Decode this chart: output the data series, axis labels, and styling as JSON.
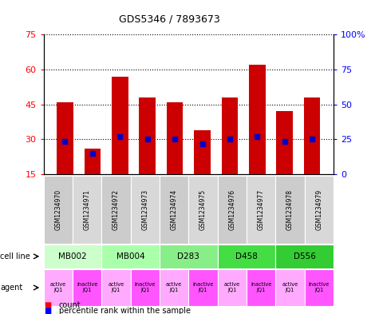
{
  "title": "GDS5346 / 7893673",
  "samples": [
    "GSM1234970",
    "GSM1234971",
    "GSM1234972",
    "GSM1234973",
    "GSM1234974",
    "GSM1234975",
    "GSM1234976",
    "GSM1234977",
    "GSM1234978",
    "GSM1234979"
  ],
  "counts": [
    46,
    26,
    57,
    48,
    46,
    34,
    48,
    62,
    42,
    48
  ],
  "percentile_y": [
    29,
    24,
    31,
    30,
    30,
    28,
    30,
    31,
    29,
    30
  ],
  "cell_lines": [
    {
      "label": "MB002",
      "cols": [
        0,
        1
      ],
      "color": "#ccffcc"
    },
    {
      "label": "MB004",
      "cols": [
        2,
        3
      ],
      "color": "#aaffaa"
    },
    {
      "label": "D283",
      "cols": [
        4,
        5
      ],
      "color": "#88ee88"
    },
    {
      "label": "D458",
      "cols": [
        6,
        7
      ],
      "color": "#44dd44"
    },
    {
      "label": "D556",
      "cols": [
        8,
        9
      ],
      "color": "#33cc33"
    }
  ],
  "agents": [
    "active\nJQ1",
    "inactive\nJQ1",
    "active\nJQ1",
    "inactive\nJQ1",
    "active\nJQ1",
    "inactive\nJQ1",
    "active\nJQ1",
    "inactive\nJQ1",
    "active\nJQ1",
    "inactive\nJQ1"
  ],
  "ylim_left": [
    15,
    75
  ],
  "ylim_right": [
    0,
    100
  ],
  "yticks_left": [
    15,
    30,
    45,
    60,
    75
  ],
  "yticks_right": [
    0,
    25,
    50,
    75,
    100
  ],
  "bar_color": "#cc0000",
  "dot_color": "#0000cc",
  "bar_bottom": 15,
  "gsm_colors": [
    "#cccccc",
    "#d8d8d8",
    "#cccccc",
    "#d8d8d8",
    "#cccccc",
    "#d8d8d8",
    "#cccccc",
    "#d8d8d8",
    "#cccccc",
    "#d8d8d8"
  ],
  "agent_colors_even": "#ffaaff",
  "agent_colors_odd": "#ff55ff"
}
